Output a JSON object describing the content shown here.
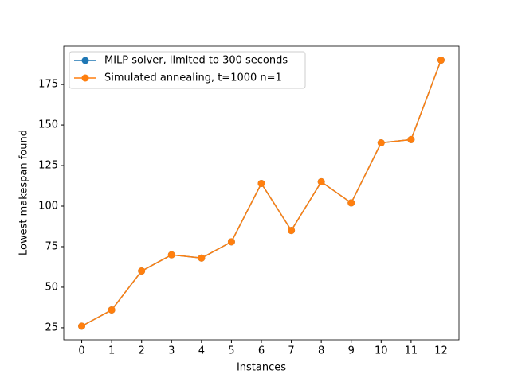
{
  "chart_data": {
    "type": "line",
    "xlabel": "Instances",
    "ylabel": "Lowest makespan found",
    "x": [
      0,
      1,
      2,
      3,
      4,
      5,
      6,
      7,
      8,
      9,
      10,
      11,
      12
    ],
    "series": [
      {
        "name": "MILP solver, limited to 300 seconds",
        "color": "#1f77b4",
        "values": [
          26,
          36,
          60,
          70,
          68,
          78,
          114,
          85,
          115,
          102,
          139,
          141,
          190
        ]
      },
      {
        "name": "Simulated annealing, t=1000 n=1",
        "color": "#ff7f0e",
        "values": [
          26,
          36,
          60,
          70,
          68,
          78,
          114,
          85,
          115,
          102,
          139,
          141,
          190
        ]
      }
    ],
    "xlim": [
      -0.6,
      12.6
    ],
    "xticks": [
      0,
      1,
      2,
      3,
      4,
      5,
      6,
      7,
      8,
      9,
      10,
      11,
      12
    ],
    "ylim": [
      17.6,
      198.6
    ],
    "yticks": [
      25,
      50,
      75,
      100,
      125,
      150,
      175
    ],
    "grid": false,
    "legend": "upper left"
  }
}
